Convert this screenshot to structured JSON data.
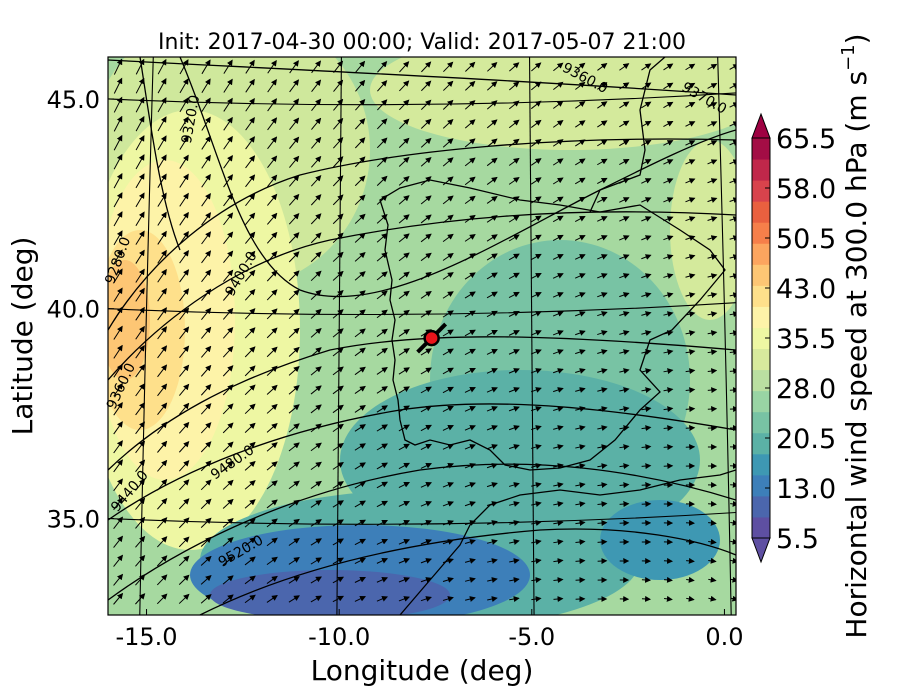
{
  "title": "Init: 2017-04-30 00:00; Valid: 2017-05-07 21:00",
  "x_axis": {
    "label": "Longitude (deg)",
    "ticks": [
      {
        "value": -15.0,
        "label": "-15.0"
      },
      {
        "value": -10.0,
        "label": "-10.0"
      },
      {
        "value": -5.0,
        "label": "-5.0"
      },
      {
        "value": 0.0,
        "label": "0.0"
      }
    ]
  },
  "y_axis": {
    "label": "Latitude (deg)",
    "ticks": [
      {
        "value": 35.0,
        "label": "35.0"
      },
      {
        "value": 40.0,
        "label": "40.0"
      },
      {
        "value": 45.0,
        "label": "45.0"
      }
    ]
  },
  "colorbar": {
    "label_main": "Horizontal wind speed at 300.0 hPa (m s",
    "label_exp": "−1",
    "label_end": ")",
    "ticks": [
      "5.5",
      "13.0",
      "20.5",
      "28.0",
      "35.5",
      "43.0",
      "50.5",
      "58.0",
      "65.5"
    ],
    "colors": [
      "#5e4fa2",
      "#4b66ad",
      "#3d7fb9",
      "#3e98b3",
      "#5bb1a6",
      "#78c3a4",
      "#99d4a4",
      "#badfa1",
      "#d8ea9d",
      "#eef7a3",
      "#fdf3a8",
      "#fee08b",
      "#fdc674",
      "#fca55f",
      "#f67f4a",
      "#e9603f",
      "#d8434c",
      "#c0274a",
      "#a30d45"
    ],
    "over_color": "#9e0142",
    "under_color": "#5e4fa2"
  },
  "contour_labels": [
    "9320.0",
    "9280.0",
    "9400.0",
    "9360.0",
    "9440.0",
    "9480.0",
    "9520.0",
    "9360.0",
    "9370.0"
  ],
  "marker": {
    "lon": -7.6,
    "lat": 39.3,
    "color": "#e8141b"
  },
  "chart_data": {
    "type": "heatmap",
    "title": "Init: 2017-04-30 00:00; Valid: 2017-05-07 21:00",
    "xlabel": "Longitude (deg)",
    "ylabel": "Latitude (deg)",
    "xlim": [
      -16.0,
      0.3
    ],
    "ylim": [
      32.7,
      46.0
    ],
    "colorbar_range": [
      5.5,
      65.5
    ],
    "field": "Horizontal wind speed at 300.0 hPa (m s-1)",
    "overlays": [
      "geopotential contours",
      "wind vectors",
      "coastlines"
    ]
  }
}
